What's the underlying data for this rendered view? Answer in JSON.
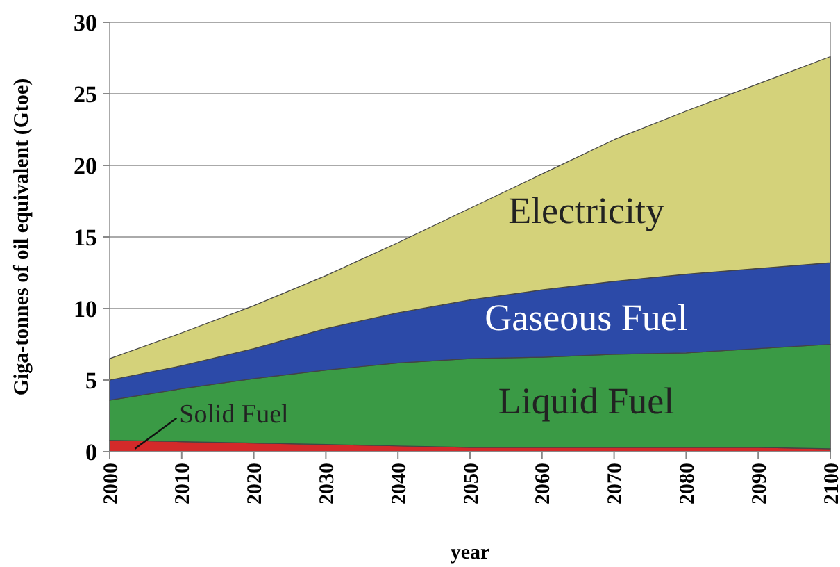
{
  "chart_data": {
    "type": "area",
    "stacked": true,
    "x": [
      2000,
      2010,
      2020,
      2030,
      2040,
      2050,
      2060,
      2070,
      2080,
      2090,
      2100
    ],
    "series": [
      {
        "name": "Solid Fuel",
        "color": "#d42a2a",
        "values": [
          0.8,
          0.7,
          0.6,
          0.5,
          0.4,
          0.3,
          0.3,
          0.3,
          0.3,
          0.3,
          0.2
        ]
      },
      {
        "name": "Liquid Fuel",
        "color": "#3a9a45",
        "values": [
          2.8,
          3.7,
          4.5,
          5.2,
          5.8,
          6.2,
          6.3,
          6.5,
          6.6,
          6.9,
          7.3
        ]
      },
      {
        "name": "Gaseous Fuel",
        "color": "#2c4aa8",
        "values": [
          1.4,
          1.6,
          2.1,
          2.9,
          3.5,
          4.1,
          4.7,
          5.1,
          5.5,
          5.6,
          5.7
        ]
      },
      {
        "name": "Electricity",
        "color": "#d4d27a",
        "values": [
          1.5,
          2.3,
          3.0,
          3.7,
          4.9,
          6.4,
          8.1,
          9.9,
          11.4,
          12.9,
          14.4
        ]
      }
    ],
    "xlabel": "year",
    "ylabel": "Giga-tonnes of oil equivalent (Gtoe)",
    "xlim": [
      2000,
      2100
    ],
    "xticks": [
      2000,
      2010,
      2020,
      2030,
      2040,
      2050,
      2060,
      2070,
      2080,
      2090,
      2100
    ],
    "ylim": [
      0,
      30
    ],
    "yticks": [
      0,
      5,
      10,
      15,
      20,
      25,
      30
    ],
    "grid": "y"
  }
}
